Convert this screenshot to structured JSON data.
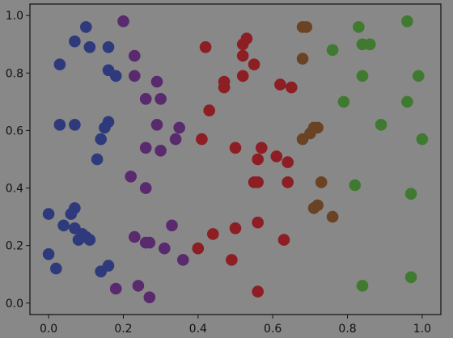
{
  "chart_data": {
    "type": "scatter",
    "title": "",
    "xlabel": "",
    "ylabel": "",
    "xlim": [
      -0.05,
      1.05
    ],
    "ylim": [
      -0.04,
      1.04
    ],
    "x_ticks": [
      "0.0",
      "0.2",
      "0.4",
      "0.6",
      "0.8",
      "1.0"
    ],
    "y_ticks": [
      "0.0",
      "0.2",
      "0.4",
      "0.6",
      "0.8",
      "1.0"
    ],
    "grid": false,
    "legend": "none",
    "colors": {
      "background": "#888888",
      "plot_area": "#888888",
      "axes": "#111111",
      "blue": "#2e3a7c",
      "purple": "#5a2a6e",
      "red": "#8c1e24",
      "brown": "#6a4224",
      "green": "#3f7a30"
    },
    "points": [
      {
        "x": 0.1,
        "y": 0.96,
        "c": "blue"
      },
      {
        "x": 0.07,
        "y": 0.91,
        "c": "blue"
      },
      {
        "x": 0.11,
        "y": 0.89,
        "c": "blue"
      },
      {
        "x": 0.16,
        "y": 0.89,
        "c": "blue"
      },
      {
        "x": 0.03,
        "y": 0.83,
        "c": "blue"
      },
      {
        "x": 0.16,
        "y": 0.81,
        "c": "blue"
      },
      {
        "x": 0.18,
        "y": 0.79,
        "c": "blue"
      },
      {
        "x": 0.03,
        "y": 0.62,
        "c": "blue"
      },
      {
        "x": 0.07,
        "y": 0.62,
        "c": "blue"
      },
      {
        "x": 0.16,
        "y": 0.63,
        "c": "blue"
      },
      {
        "x": 0.15,
        "y": 0.61,
        "c": "blue"
      },
      {
        "x": 0.14,
        "y": 0.57,
        "c": "blue"
      },
      {
        "x": 0.13,
        "y": 0.5,
        "c": "blue"
      },
      {
        "x": 0.07,
        "y": 0.33,
        "c": "blue"
      },
      {
        "x": 0.0,
        "y": 0.31,
        "c": "blue"
      },
      {
        "x": 0.06,
        "y": 0.31,
        "c": "blue"
      },
      {
        "x": 0.04,
        "y": 0.27,
        "c": "blue"
      },
      {
        "x": 0.07,
        "y": 0.26,
        "c": "blue"
      },
      {
        "x": 0.09,
        "y": 0.24,
        "c": "blue"
      },
      {
        "x": 0.1,
        "y": 0.23,
        "c": "blue"
      },
      {
        "x": 0.11,
        "y": 0.22,
        "c": "blue"
      },
      {
        "x": 0.08,
        "y": 0.22,
        "c": "blue"
      },
      {
        "x": 0.0,
        "y": 0.17,
        "c": "blue"
      },
      {
        "x": 0.02,
        "y": 0.12,
        "c": "blue"
      },
      {
        "x": 0.16,
        "y": 0.13,
        "c": "blue"
      },
      {
        "x": 0.14,
        "y": 0.11,
        "c": "blue"
      },
      {
        "x": 0.2,
        "y": 0.98,
        "c": "purple"
      },
      {
        "x": 0.23,
        "y": 0.86,
        "c": "purple"
      },
      {
        "x": 0.23,
        "y": 0.79,
        "c": "purple"
      },
      {
        "x": 0.29,
        "y": 0.77,
        "c": "purple"
      },
      {
        "x": 0.26,
        "y": 0.71,
        "c": "purple"
      },
      {
        "x": 0.3,
        "y": 0.71,
        "c": "purple"
      },
      {
        "x": 0.29,
        "y": 0.62,
        "c": "purple"
      },
      {
        "x": 0.35,
        "y": 0.61,
        "c": "purple"
      },
      {
        "x": 0.34,
        "y": 0.57,
        "c": "purple"
      },
      {
        "x": 0.26,
        "y": 0.54,
        "c": "purple"
      },
      {
        "x": 0.3,
        "y": 0.53,
        "c": "purple"
      },
      {
        "x": 0.22,
        "y": 0.44,
        "c": "purple"
      },
      {
        "x": 0.26,
        "y": 0.4,
        "c": "purple"
      },
      {
        "x": 0.33,
        "y": 0.27,
        "c": "purple"
      },
      {
        "x": 0.23,
        "y": 0.23,
        "c": "purple"
      },
      {
        "x": 0.27,
        "y": 0.21,
        "c": "purple"
      },
      {
        "x": 0.26,
        "y": 0.21,
        "c": "purple"
      },
      {
        "x": 0.31,
        "y": 0.19,
        "c": "purple"
      },
      {
        "x": 0.36,
        "y": 0.15,
        "c": "purple"
      },
      {
        "x": 0.18,
        "y": 0.05,
        "c": "purple"
      },
      {
        "x": 0.24,
        "y": 0.06,
        "c": "purple"
      },
      {
        "x": 0.27,
        "y": 0.02,
        "c": "purple"
      },
      {
        "x": 0.42,
        "y": 0.89,
        "c": "red"
      },
      {
        "x": 0.53,
        "y": 0.92,
        "c": "red"
      },
      {
        "x": 0.52,
        "y": 0.9,
        "c": "red"
      },
      {
        "x": 0.52,
        "y": 0.86,
        "c": "red"
      },
      {
        "x": 0.55,
        "y": 0.83,
        "c": "red"
      },
      {
        "x": 0.52,
        "y": 0.79,
        "c": "red"
      },
      {
        "x": 0.47,
        "y": 0.77,
        "c": "red"
      },
      {
        "x": 0.47,
        "y": 0.75,
        "c": "red"
      },
      {
        "x": 0.62,
        "y": 0.76,
        "c": "red"
      },
      {
        "x": 0.65,
        "y": 0.75,
        "c": "red"
      },
      {
        "x": 0.43,
        "y": 0.67,
        "c": "red"
      },
      {
        "x": 0.41,
        "y": 0.57,
        "c": "red"
      },
      {
        "x": 0.5,
        "y": 0.54,
        "c": "red"
      },
      {
        "x": 0.57,
        "y": 0.54,
        "c": "red"
      },
      {
        "x": 0.56,
        "y": 0.5,
        "c": "red"
      },
      {
        "x": 0.61,
        "y": 0.51,
        "c": "red"
      },
      {
        "x": 0.64,
        "y": 0.49,
        "c": "red"
      },
      {
        "x": 0.55,
        "y": 0.42,
        "c": "red"
      },
      {
        "x": 0.56,
        "y": 0.42,
        "c": "red"
      },
      {
        "x": 0.64,
        "y": 0.42,
        "c": "red"
      },
      {
        "x": 0.56,
        "y": 0.28,
        "c": "red"
      },
      {
        "x": 0.5,
        "y": 0.26,
        "c": "red"
      },
      {
        "x": 0.44,
        "y": 0.24,
        "c": "red"
      },
      {
        "x": 0.4,
        "y": 0.19,
        "c": "red"
      },
      {
        "x": 0.49,
        "y": 0.15,
        "c": "red"
      },
      {
        "x": 0.63,
        "y": 0.22,
        "c": "red"
      },
      {
        "x": 0.56,
        "y": 0.04,
        "c": "red"
      },
      {
        "x": 0.68,
        "y": 0.96,
        "c": "brown"
      },
      {
        "x": 0.69,
        "y": 0.96,
        "c": "brown"
      },
      {
        "x": 0.68,
        "y": 0.85,
        "c": "brown"
      },
      {
        "x": 0.71,
        "y": 0.61,
        "c": "brown"
      },
      {
        "x": 0.72,
        "y": 0.61,
        "c": "brown"
      },
      {
        "x": 0.7,
        "y": 0.59,
        "c": "brown"
      },
      {
        "x": 0.68,
        "y": 0.57,
        "c": "brown"
      },
      {
        "x": 0.73,
        "y": 0.42,
        "c": "brown"
      },
      {
        "x": 0.72,
        "y": 0.34,
        "c": "brown"
      },
      {
        "x": 0.71,
        "y": 0.33,
        "c": "brown"
      },
      {
        "x": 0.76,
        "y": 0.3,
        "c": "brown"
      },
      {
        "x": 0.96,
        "y": 0.98,
        "c": "green"
      },
      {
        "x": 0.83,
        "y": 0.96,
        "c": "green"
      },
      {
        "x": 0.84,
        "y": 0.9,
        "c": "green"
      },
      {
        "x": 0.86,
        "y": 0.9,
        "c": "green"
      },
      {
        "x": 0.76,
        "y": 0.88,
        "c": "green"
      },
      {
        "x": 0.84,
        "y": 0.79,
        "c": "green"
      },
      {
        "x": 0.99,
        "y": 0.79,
        "c": "green"
      },
      {
        "x": 0.79,
        "y": 0.7,
        "c": "green"
      },
      {
        "x": 0.96,
        "y": 0.7,
        "c": "green"
      },
      {
        "x": 0.89,
        "y": 0.62,
        "c": "green"
      },
      {
        "x": 1.0,
        "y": 0.57,
        "c": "green"
      },
      {
        "x": 0.82,
        "y": 0.41,
        "c": "green"
      },
      {
        "x": 0.97,
        "y": 0.38,
        "c": "green"
      },
      {
        "x": 0.84,
        "y": 0.06,
        "c": "green"
      },
      {
        "x": 0.97,
        "y": 0.09,
        "c": "green"
      }
    ]
  }
}
